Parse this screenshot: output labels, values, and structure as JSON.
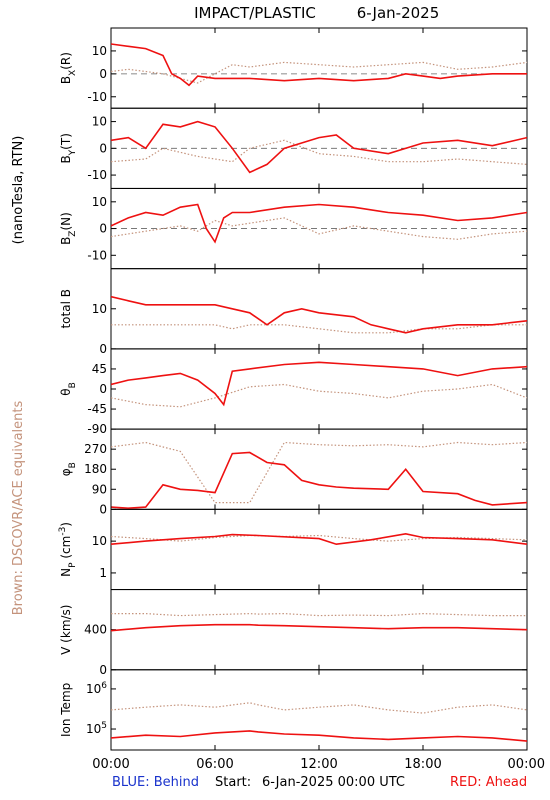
{
  "header": {
    "title": "IMPACT/PLASTIC",
    "date": "6-Jan-2025"
  },
  "footer": {
    "behind": "BLUE: Behind",
    "start": "Start:",
    "start_value": "6-Jan-2025 00:00 UTC",
    "ahead": "RED: Ahead"
  },
  "side_labels": {
    "mag_units": "(nanoTesla, RTN)",
    "brown_note": "Brown: DSCOVR/ACE equivalents"
  },
  "colors": {
    "ahead": "#ee1111",
    "brown": "#c4937c",
    "behind": "#1a33cc",
    "frame": "#000000"
  },
  "chart_data": {
    "type": "line",
    "x_axis": {
      "ticks": [
        "00:00",
        "06:00",
        "12:00",
        "18:00",
        "00:00"
      ],
      "range_hours": [
        0,
        24
      ]
    },
    "panels": [
      {
        "key": "bx",
        "ylabel": "B_X(R)",
        "ylim": [
          -15,
          20
        ],
        "zero_line": true,
        "ticks": [
          {
            "v": 10,
            "label": "10"
          },
          {
            "v": 0,
            "label": "0"
          },
          {
            "v": -10,
            "label": "-10"
          }
        ],
        "series": [
          {
            "key": "ahead",
            "x": [
              0,
              1,
              2,
              3,
              3.5,
              4,
              4.5,
              5,
              6,
              7,
              8,
              10,
              12,
              14,
              16,
              17,
              18,
              19,
              20,
              22,
              24
            ],
            "y": [
              13,
              12,
              11,
              8,
              0,
              -2,
              -5,
              -1,
              -2,
              -2,
              -2,
              -3,
              -2,
              -3,
              -2,
              0,
              -1,
              -2,
              -1,
              0,
              0
            ]
          },
          {
            "key": "brown",
            "x": [
              0,
              1,
              2,
              3,
              4,
              5,
              6,
              7,
              8,
              10,
              12,
              14,
              16,
              18,
              20,
              22,
              24
            ],
            "y": [
              1,
              2,
              1,
              0,
              -2,
              -4,
              0,
              4,
              3,
              5,
              4,
              3,
              4,
              5,
              2,
              3,
              5
            ]
          }
        ]
      },
      {
        "key": "by",
        "ylabel": "B_Y(T)",
        "ylim": [
          -15,
          15
        ],
        "zero_line": true,
        "ticks": [
          {
            "v": 10,
            "label": "10"
          },
          {
            "v": 0,
            "label": "0"
          },
          {
            "v": -10,
            "label": "-10"
          }
        ],
        "series": [
          {
            "key": "ahead",
            "x": [
              0,
              1,
              2,
              3,
              4,
              5,
              6,
              7,
              8,
              9,
              10,
              12,
              13,
              14,
              16,
              18,
              20,
              22,
              24
            ],
            "y": [
              3,
              4,
              0,
              9,
              8,
              10,
              8,
              0,
              -9,
              -6,
              0,
              4,
              5,
              0,
              -2,
              2,
              3,
              1,
              4
            ]
          },
          {
            "key": "brown",
            "x": [
              0,
              2,
              3,
              5,
              6,
              7,
              8,
              10,
              12,
              14,
              16,
              18,
              20,
              22,
              24
            ],
            "y": [
              -5,
              -4,
              0,
              -3,
              -4,
              -5,
              0,
              3,
              -2,
              -3,
              -5,
              -5,
              -4,
              -5,
              -6
            ]
          }
        ]
      },
      {
        "key": "bz",
        "ylabel": "B_Z(N)",
        "ylim": [
          -15,
          15
        ],
        "zero_line": true,
        "ticks": [
          {
            "v": 10,
            "label": "10"
          },
          {
            "v": 0,
            "label": "0"
          },
          {
            "v": -10,
            "label": "-10"
          }
        ],
        "series": [
          {
            "key": "ahead",
            "x": [
              0,
              1,
              2,
              3,
              4,
              5,
              5.5,
              6,
              6.5,
              7,
              8,
              10,
              12,
              14,
              16,
              18,
              20,
              22,
              24
            ],
            "y": [
              1,
              4,
              6,
              5,
              8,
              9,
              0,
              -5,
              4,
              6,
              6,
              8,
              9,
              8,
              6,
              5,
              3,
              4,
              6
            ]
          },
          {
            "key": "brown",
            "x": [
              0,
              2,
              4,
              5,
              6,
              7,
              8,
              10,
              12,
              14,
              16,
              18,
              20,
              22,
              24
            ],
            "y": [
              -3,
              -1,
              1,
              -1,
              3,
              1,
              2,
              4,
              -2,
              1,
              -1,
              -3,
              -4,
              -2,
              -1
            ]
          }
        ]
      },
      {
        "key": "btot",
        "ylabel": "total B",
        "ylim": [
          0,
          20
        ],
        "zero_line": false,
        "ticks": [
          {
            "v": 10,
            "label": "10"
          },
          {
            "v": 0,
            "label": "0"
          }
        ],
        "series": [
          {
            "key": "ahead",
            "x": [
              0,
              1,
              2,
              4,
              6,
              7,
              8,
              9,
              10,
              11,
              12,
              14,
              15,
              16,
              17,
              18,
              20,
              22,
              24
            ],
            "y": [
              13,
              12,
              11,
              11,
              11,
              10,
              9,
              6,
              9,
              10,
              9,
              8,
              6,
              5,
              4,
              5,
              6,
              6,
              7
            ]
          },
          {
            "key": "brown",
            "x": [
              0,
              2,
              4,
              6,
              7,
              8,
              10,
              12,
              14,
              16,
              18,
              20,
              22,
              24
            ],
            "y": [
              6,
              6,
              6,
              6,
              5,
              6,
              6,
              5,
              4,
              4,
              5,
              5,
              6,
              6
            ]
          }
        ]
      },
      {
        "key": "theta",
        "ylabel": "θ_B",
        "ylim": [
          -90,
          90
        ],
        "zero_line": false,
        "ticks": [
          {
            "v": 45,
            "label": "45"
          },
          {
            "v": 0,
            "label": "0"
          },
          {
            "v": -45,
            "label": "-45"
          },
          {
            "v": -90,
            "label": "-90"
          }
        ],
        "series": [
          {
            "key": "ahead",
            "x": [
              0,
              1,
              2,
              3,
              4,
              5,
              6,
              6.5,
              7,
              8,
              10,
              12,
              14,
              16,
              18,
              20,
              22,
              24
            ],
            "y": [
              10,
              20,
              25,
              30,
              35,
              20,
              -10,
              -35,
              40,
              45,
              55,
              60,
              55,
              50,
              45,
              30,
              45,
              50
            ]
          },
          {
            "key": "brown",
            "x": [
              0,
              2,
              4,
              6,
              8,
              10,
              12,
              14,
              16,
              18,
              20,
              22,
              24
            ],
            "y": [
              -20,
              -35,
              -40,
              -20,
              5,
              10,
              -5,
              -10,
              -20,
              -5,
              0,
              10,
              -20
            ]
          }
        ]
      },
      {
        "key": "phi",
        "ylabel": "φ_B",
        "ylim": [
          0,
          360
        ],
        "zero_line": false,
        "ticks": [
          {
            "v": 270,
            "label": "270"
          },
          {
            "v": 180,
            "label": "180"
          },
          {
            "v": 90,
            "label": "90"
          },
          {
            "v": 0,
            "label": "0"
          }
        ],
        "series": [
          {
            "key": "ahead",
            "x": [
              0,
              1,
              2,
              3,
              4,
              5,
              6,
              7,
              8,
              9,
              10,
              11,
              12,
              13,
              14,
              16,
              17,
              18,
              20,
              21,
              22,
              24
            ],
            "y": [
              10,
              5,
              10,
              110,
              90,
              85,
              75,
              250,
              255,
              210,
              200,
              130,
              110,
              100,
              95,
              90,
              180,
              80,
              70,
              40,
              20,
              30
            ]
          },
          {
            "key": "brown",
            "x": [
              0,
              2,
              4,
              6,
              8,
              10,
              12,
              14,
              16,
              18,
              20,
              22,
              24
            ],
            "y": [
              280,
              300,
              260,
              30,
              30,
              300,
              290,
              285,
              290,
              280,
              300,
              290,
              300
            ]
          }
        ]
      },
      {
        "key": "np",
        "ylabel": "N_P (cm^-3)",
        "ylim_log": [
          0.3,
          100
        ],
        "log": true,
        "zero_line": false,
        "ticks": [
          {
            "v": 10,
            "label": "10"
          },
          {
            "v": 1,
            "label": "1"
          }
        ],
        "series": [
          {
            "key": "ahead",
            "x": [
              0,
              2,
              4,
              6,
              7,
              8.5,
              12,
              13,
              15,
              17,
              18,
              20,
              22,
              24
            ],
            "y": [
              8,
              10,
              12,
              14,
              16,
              15,
              12,
              8,
              11,
              17,
              13,
              12,
              11,
              8
            ]
          },
          {
            "key": "brown",
            "x": [
              0,
              2,
              4,
              6,
              8,
              10,
              12,
              14,
              16,
              18,
              20,
              22,
              24
            ],
            "y": [
              14,
              12,
              10,
              13,
              15,
              14,
              15,
              12,
              10,
              12,
              13,
              12,
              11
            ]
          }
        ]
      },
      {
        "key": "v",
        "ylabel": "V (km/s)",
        "ylim": [
          0,
          800
        ],
        "zero_line": false,
        "ticks": [
          {
            "v": 400,
            "label": "400"
          },
          {
            "v": 0,
            "label": "0"
          }
        ],
        "series": [
          {
            "key": "ahead",
            "x": [
              0,
              2,
              4,
              6,
              8,
              8.5,
              10,
              12,
              14,
              16,
              18,
              20,
              22,
              24
            ],
            "y": [
              390,
              420,
              440,
              450,
              450,
              445,
              440,
              430,
              420,
              410,
              420,
              420,
              410,
              400
            ]
          },
          {
            "key": "brown",
            "x": [
              0,
              2,
              4,
              6,
              8,
              8.5,
              10,
              12,
              14,
              16,
              18,
              20,
              22,
              24
            ],
            "y": [
              560,
              560,
              540,
              550,
              560,
              555,
              560,
              540,
              545,
              540,
              560,
              550,
              540,
              540
            ]
          }
        ]
      },
      {
        "key": "temp",
        "ylabel": "Ion Temp",
        "ylim_log": [
          30000,
          3000000
        ],
        "log": true,
        "zero_line": false,
        "ticks": [
          {
            "v": 1000000,
            "label": "10^6"
          },
          {
            "v": 100000,
            "label": "10^5"
          }
        ],
        "series": [
          {
            "key": "ahead",
            "x": [
              0,
              2,
              4,
              6,
              8,
              8.5,
              10,
              12,
              14,
              16,
              18,
              20,
              22,
              24
            ],
            "y": [
              60000,
              70000,
              65000,
              80000,
              90000,
              85000,
              75000,
              70000,
              60000,
              55000,
              60000,
              65000,
              60000,
              50000
            ]
          },
          {
            "key": "brown",
            "x": [
              0,
              2,
              4,
              6,
              8,
              8.5,
              10,
              12,
              14,
              16,
              18,
              20,
              22,
              24
            ],
            "y": [
              300000,
              350000,
              400000,
              350000,
              450000,
              400000,
              300000,
              350000,
              400000,
              300000,
              250000,
              350000,
              400000,
              300000
            ]
          }
        ]
      }
    ]
  }
}
